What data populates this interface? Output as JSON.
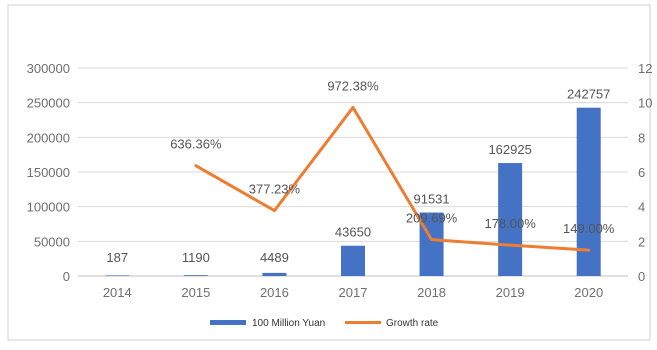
{
  "chart_data": {
    "type": "bar",
    "categories": [
      "2014",
      "2015",
      "2016",
      "2017",
      "2018",
      "2019",
      "2020"
    ],
    "series": [
      {
        "name": "100 Million Yuan",
        "type": "bar",
        "axis": "left",
        "color": "#4472c4",
        "values": [
          187,
          1190,
          4489,
          43650,
          91531,
          162925,
          242757
        ],
        "labels": [
          "187",
          "1190",
          "4489",
          "43650",
          "91531",
          "162925",
          "242757"
        ]
      },
      {
        "name": "Growth rate",
        "type": "line",
        "axis": "right",
        "color": "#ed7d31",
        "values": [
          null,
          6.3636,
          3.7723,
          9.7238,
          2.0969,
          1.78,
          1.49
        ],
        "labels": [
          "",
          "636.36%",
          "377.23%",
          "972.38%",
          "209.69%",
          "178.00%",
          "149.00%"
        ]
      }
    ],
    "y_left": {
      "min": 0,
      "max": 300000,
      "ticks": [
        "0",
        "50000",
        "100000",
        "150000",
        "200000",
        "250000",
        "300000"
      ]
    },
    "y_right": {
      "min": 0,
      "max": 12,
      "ticks": [
        "0",
        "2",
        "4",
        "6",
        "8",
        "10",
        "12"
      ]
    },
    "title": "",
    "xlabel": "",
    "ylabel": "",
    "grid": true,
    "legend_position": "bottom"
  }
}
